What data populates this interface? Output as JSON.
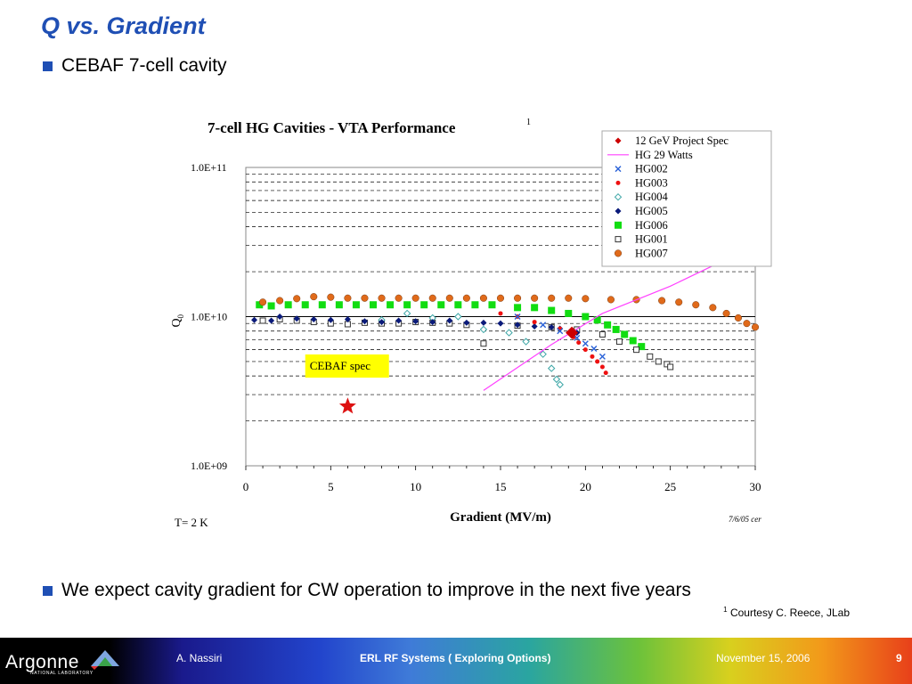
{
  "slide": {
    "title": "Q vs. Gradient",
    "bullet1": "CEBAF 7-cell cavity",
    "bullet2": "We expect cavity gradient for CW operation to improve in the next five years",
    "footnote_mark": "1",
    "footnote_text": "Courtesy C. Reece, JLab"
  },
  "footer": {
    "logo_text": "Argonne",
    "logo_sub": "NATIONAL LABORATORY",
    "author": "A. Nassiri",
    "talk": "ERL RF Systems ( Exploring Options)",
    "date": "November 15, 2006",
    "page": "9"
  },
  "chart_data": {
    "type": "scatter",
    "title": "7-cell HG Cavities  - VTA Performance",
    "title_sup": "1",
    "xlabel": "Gradient (MV/m)",
    "ylabel": "Q",
    "ylabel_sub": "0",
    "xlim": [
      0,
      30
    ],
    "ylim": [
      1000000000.0,
      100000000000.0
    ],
    "yscale": "log",
    "xticks": [
      0,
      5,
      10,
      15,
      20,
      25,
      30
    ],
    "yticks": [
      "1.0E+09",
      "1.0E+10",
      "1.0E+11"
    ],
    "grid": "dashed horizontal",
    "legend_position": "top-right",
    "annotations": {
      "temp": "T= 2 K",
      "date_note": "7/6/05  cer",
      "hg_label": "HG 29 W",
      "cebaf_label": "CEBAF spec"
    },
    "cebaf_spec": {
      "x": 6,
      "y": 2500000000.0
    },
    "series": [
      {
        "name": "12 GeV Project Spec",
        "color": "#cc0000",
        "marker": "diamond",
        "points": [
          [
            19.2,
            7800000000.0
          ]
        ]
      },
      {
        "name": "HG 29 Watts",
        "color": "#ff40ff",
        "marker": "line",
        "points": [
          [
            14,
            3200000000.0
          ],
          [
            18,
            6500000000.0
          ],
          [
            21,
            10500000000.0
          ],
          [
            25,
            16000000000.0
          ],
          [
            30,
            30000000000.0
          ]
        ]
      },
      {
        "name": "HG002",
        "color": "#2a62d8",
        "marker": "x",
        "points": [
          [
            16,
            10000000000.0
          ],
          [
            17.5,
            8800000000.0
          ],
          [
            18.5,
            8000000000.0
          ],
          [
            19.5,
            7200000000.0
          ],
          [
            20,
            6600000000.0
          ],
          [
            20.5,
            6100000000.0
          ],
          [
            21,
            5400000000.0
          ]
        ]
      },
      {
        "name": "HG003",
        "color": "#ee1111",
        "marker": "dot",
        "points": [
          [
            15,
            10500000000.0
          ],
          [
            16,
            10000000000.0
          ],
          [
            17,
            9200000000.0
          ],
          [
            18.5,
            8300000000.0
          ],
          [
            19.3,
            7300000000.0
          ],
          [
            19.6,
            6700000000.0
          ],
          [
            20,
            6000000000.0
          ],
          [
            20.4,
            5400000000.0
          ],
          [
            20.7,
            5000000000.0
          ],
          [
            21,
            4600000000.0
          ],
          [
            21.2,
            4200000000.0
          ]
        ]
      },
      {
        "name": "HG004",
        "color": "#3aa5a5",
        "marker": "diamond-open",
        "points": [
          [
            8,
            9500000000.0
          ],
          [
            9.5,
            10500000000.0
          ],
          [
            11,
            9800000000.0
          ],
          [
            12.5,
            10000000000.0
          ],
          [
            14,
            8200000000.0
          ],
          [
            15.5,
            7800000000.0
          ],
          [
            16.5,
            6800000000.0
          ],
          [
            17.5,
            5600000000.0
          ],
          [
            18,
            4500000000.0
          ],
          [
            18.3,
            3800000000.0
          ],
          [
            18.5,
            3500000000.0
          ]
        ]
      },
      {
        "name": "HG005",
        "color": "#0a1a7a",
        "marker": "diamond",
        "points": [
          [
            0.5,
            9500000000.0
          ],
          [
            1.5,
            9400000000.0
          ],
          [
            2,
            10000000000.0
          ],
          [
            3,
            9700000000.0
          ],
          [
            4,
            9600000000.0
          ],
          [
            5,
            9500000000.0
          ],
          [
            6,
            9600000000.0
          ],
          [
            7,
            9300000000.0
          ],
          [
            8,
            9200000000.0
          ],
          [
            9,
            9400000000.0
          ],
          [
            10,
            9300000000.0
          ],
          [
            11,
            9200000000.0
          ],
          [
            12,
            9400000000.0
          ],
          [
            13,
            9100000000.0
          ],
          [
            14,
            9100000000.0
          ],
          [
            15,
            9000000000.0
          ],
          [
            16,
            8800000000.0
          ],
          [
            17,
            8600000000.0
          ],
          [
            18,
            8500000000.0
          ],
          [
            18.5,
            8300000000.0
          ],
          [
            19.5,
            7800000000.0
          ]
        ]
      },
      {
        "name": "HG006",
        "color": "#11dd11",
        "marker": "square",
        "points": [
          [
            0.8,
            12000000000.0
          ],
          [
            1.5,
            11800000000.0
          ],
          [
            2.5,
            12000000000.0
          ],
          [
            3.5,
            12000000000.0
          ],
          [
            4.5,
            12000000000.0
          ],
          [
            5.5,
            12000000000.0
          ],
          [
            6.5,
            12000000000.0
          ],
          [
            7.5,
            12000000000.0
          ],
          [
            8.5,
            12000000000.0
          ],
          [
            9.5,
            12000000000.0
          ],
          [
            10.5,
            12000000000.0
          ],
          [
            11.5,
            12000000000.0
          ],
          [
            12.5,
            12000000000.0
          ],
          [
            13.5,
            12000000000.0
          ],
          [
            14.5,
            12000000000.0
          ],
          [
            16,
            11500000000.0
          ],
          [
            17,
            11500000000.0
          ],
          [
            18,
            11000000000.0
          ],
          [
            19,
            10500000000.0
          ],
          [
            20,
            10000000000.0
          ],
          [
            20.7,
            9500000000.0
          ],
          [
            21.3,
            8800000000.0
          ],
          [
            21.8,
            8200000000.0
          ],
          [
            22.3,
            7600000000.0
          ],
          [
            22.8,
            6900000000.0
          ],
          [
            23.3,
            6300000000.0
          ]
        ]
      },
      {
        "name": "HG001",
        "color": "#333333",
        "marker": "square-open",
        "points": [
          [
            1,
            9400000000.0
          ],
          [
            2,
            9600000000.0
          ],
          [
            3,
            9400000000.0
          ],
          [
            4,
            9200000000.0
          ],
          [
            5,
            9000000000.0
          ],
          [
            6,
            8900000000.0
          ],
          [
            7,
            9100000000.0
          ],
          [
            8,
            9000000000.0
          ],
          [
            9,
            9000000000.0
          ],
          [
            10,
            9200000000.0
          ],
          [
            11,
            9100000000.0
          ],
          [
            12,
            9000000000.0
          ],
          [
            13,
            8800000000.0
          ],
          [
            14,
            6600000000.0
          ],
          [
            16,
            8700000000.0
          ],
          [
            18,
            8500000000.0
          ],
          [
            19.5,
            8200000000.0
          ],
          [
            21,
            7600000000.0
          ],
          [
            22,
            6800000000.0
          ],
          [
            23,
            6000000000.0
          ],
          [
            23.8,
            5400000000.0
          ],
          [
            24.3,
            5000000000.0
          ],
          [
            24.8,
            4800000000.0
          ],
          [
            25,
            4600000000.0
          ]
        ]
      },
      {
        "name": "HG007",
        "color": "#e06a1a",
        "marker": "circle",
        "points": [
          [
            1,
            12500000000.0
          ],
          [
            2,
            12800000000.0
          ],
          [
            3,
            13200000000.0
          ],
          [
            4,
            13600000000.0
          ],
          [
            5,
            13500000000.0
          ],
          [
            6,
            13300000000.0
          ],
          [
            7,
            13300000000.0
          ],
          [
            8,
            13300000000.0
          ],
          [
            9,
            13300000000.0
          ],
          [
            10,
            13300000000.0
          ],
          [
            11,
            13300000000.0
          ],
          [
            12,
            13300000000.0
          ],
          [
            13,
            13300000000.0
          ],
          [
            14,
            13300000000.0
          ],
          [
            15,
            13300000000.0
          ],
          [
            16,
            13300000000.0
          ],
          [
            17,
            13300000000.0
          ],
          [
            18,
            13300000000.0
          ],
          [
            19,
            13300000000.0
          ],
          [
            20,
            13200000000.0
          ],
          [
            21.5,
            13000000000.0
          ],
          [
            23,
            13000000000.0
          ],
          [
            24.5,
            12800000000.0
          ],
          [
            25.5,
            12500000000.0
          ],
          [
            26.5,
            12000000000.0
          ],
          [
            27.5,
            11500000000.0
          ],
          [
            28.3,
            10500000000.0
          ],
          [
            29,
            9800000000.0
          ],
          [
            29.5,
            9000000000.0
          ],
          [
            30,
            8500000000.0
          ]
        ]
      }
    ]
  }
}
